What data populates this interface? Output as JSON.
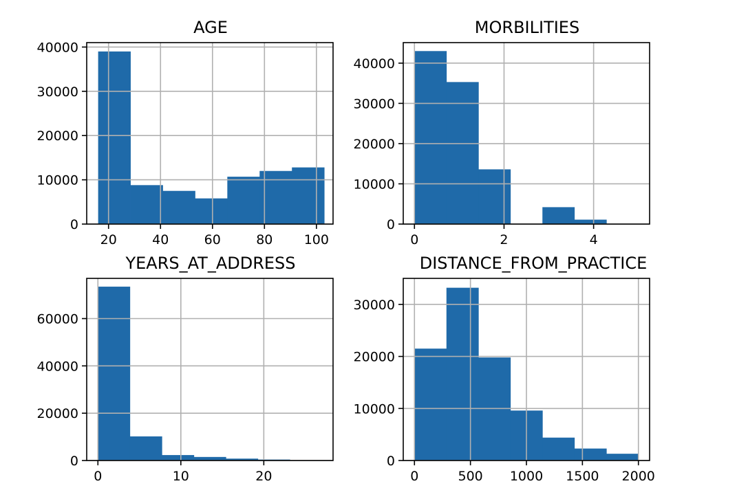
{
  "chart_data": [
    {
      "type": "bar",
      "title": "AGE",
      "xlabel": "",
      "ylabel": "",
      "xlim": [
        11.6,
        106.4
      ],
      "ylim": [
        0,
        41000
      ],
      "grid": true,
      "bin_edges": [
        16,
        28.43,
        40.86,
        53.29,
        65.71,
        78.14,
        90.57,
        103
      ],
      "values": [
        39000,
        8800,
        7500,
        5800,
        10700,
        12000,
        12800
      ],
      "xticks": [
        20,
        40,
        60,
        80,
        100
      ],
      "yticks": [
        0,
        10000,
        20000,
        30000,
        40000
      ],
      "xtick_labels": [
        "20",
        "40",
        "60",
        "80",
        "100"
      ],
      "ytick_labels": [
        "0",
        "10000",
        "20000",
        "30000",
        "40000"
      ],
      "color": "#1f6aa9"
    },
    {
      "type": "bar",
      "title": "MORBILITIES",
      "xlabel": "",
      "ylabel": "",
      "xlim": [
        -0.25,
        5.25
      ],
      "ylim": [
        0,
        45100
      ],
      "grid": true,
      "bin_edges": [
        0,
        0.714,
        1.429,
        2.143,
        2.857,
        3.571,
        4.286,
        5
      ],
      "values": [
        43000,
        35300,
        13600,
        0,
        4200,
        1100,
        0
      ],
      "xticks": [
        0,
        2,
        4
      ],
      "yticks": [
        0,
        10000,
        20000,
        30000,
        40000
      ],
      "xtick_labels": [
        "0",
        "2",
        "4"
      ],
      "ytick_labels": [
        "0",
        "10000",
        "20000",
        "30000",
        "40000"
      ],
      "color": "#1f6aa9"
    },
    {
      "type": "bar",
      "title": "YEARS_AT_ADDRESS",
      "xlabel": "",
      "ylabel": "",
      "xlim": [
        -1.35,
        28.35
      ],
      "ylim": [
        0,
        77000
      ],
      "grid": true,
      "bin_edges": [
        0,
        3.857,
        7.714,
        11.571,
        15.429,
        19.286,
        23.143,
        27
      ],
      "values": [
        73500,
        10200,
        2300,
        1500,
        800,
        400,
        100
      ],
      "xticks": [
        0,
        10,
        20
      ],
      "yticks": [
        0,
        20000,
        40000,
        60000
      ],
      "xtick_labels": [
        "0",
        "10",
        "20"
      ],
      "ytick_labels": [
        "0",
        "20000",
        "40000",
        "60000"
      ],
      "color": "#1f6aa9"
    },
    {
      "type": "bar",
      "title": "DISTANCE_FROM_PRACTICE",
      "xlabel": "",
      "ylabel": "",
      "xlim": [
        -100,
        2100
      ],
      "ylim": [
        0,
        35000
      ],
      "grid": true,
      "bin_edges": [
        0,
        285.7,
        571.4,
        857.1,
        1142.9,
        1428.6,
        1714.3,
        2000
      ],
      "values": [
        21500,
        33200,
        19800,
        9600,
        4400,
        2300,
        1300
      ],
      "xticks": [
        0,
        500,
        1000,
        1500,
        2000
      ],
      "yticks": [
        0,
        10000,
        20000,
        30000
      ],
      "xtick_labels": [
        "0",
        "500",
        "1000",
        "1500",
        "2000"
      ],
      "ytick_labels": [
        "0",
        "10000",
        "20000",
        "30000"
      ],
      "color": "#1f6aa9"
    }
  ]
}
